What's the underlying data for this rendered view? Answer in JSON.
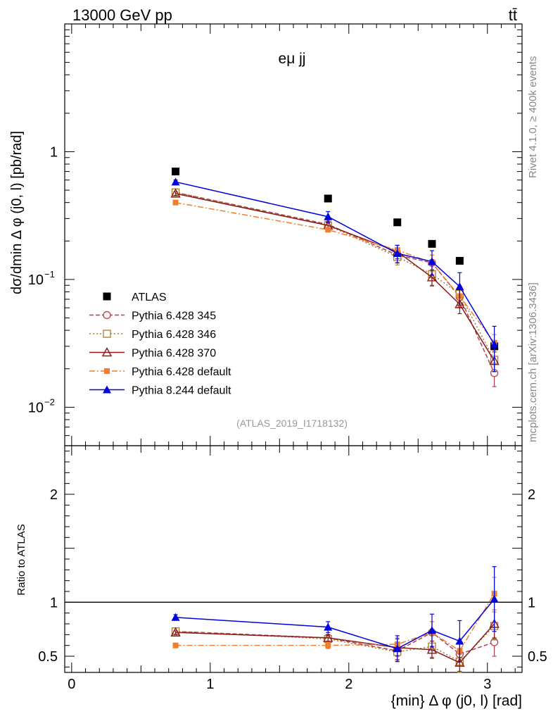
{
  "header": {
    "left": "13000 GeV pp",
    "right": "tt̄",
    "process": "eμ jj",
    "analysis_id": "(ATLAS_2019_I1718132)",
    "rivet": "Rivet 4.1.0, ≥ 400k events",
    "mcplots": "mcplots.cern.ch [arXiv:1306.3436]"
  },
  "colors": {
    "ATLAS": "#000000",
    "Pythia 6.428 345": "#b0404a",
    "Pythia 6.428 346": "#a87b30",
    "Pythia 6.428 370": "#8b1a1a",
    "Pythia 6.428 default": "#f07f30",
    "Pythia 8.244 default": "#0000e0"
  },
  "chart_data": [
    {
      "type": "line",
      "panel": "main",
      "ylabel": "dσ/dmin Δ φ (j0, l) [pb/rad]",
      "yscale": "log",
      "ylim": [
        0.005,
        10
      ],
      "xlim": [
        -0.05,
        3.25
      ],
      "yticks": [
        {
          "value": 1,
          "label": "1"
        },
        {
          "value": 0.1,
          "label": "10",
          "exp": "−1"
        },
        {
          "value": 0.01,
          "label": "10",
          "exp": "−2"
        }
      ],
      "x": [
        0.75,
        1.85,
        2.35,
        2.6,
        2.8,
        3.05
      ],
      "series": [
        {
          "name": "ATLAS",
          "marker": "square",
          "values": [
            0.7,
            0.43,
            0.28,
            0.19,
            0.14,
            0.03
          ]
        },
        {
          "name": "Pythia 6.428 345",
          "marker": "circle-open",
          "dash": "6,3",
          "values": [
            0.48,
            0.27,
            0.155,
            0.135,
            0.073,
            0.0185
          ],
          "err": [
            0.015,
            0.015,
            0.02,
            0.02,
            0.012,
            0.004
          ]
        },
        {
          "name": "Pythia 6.428 346",
          "marker": "square-open",
          "dash": "2,3",
          "values": [
            0.48,
            0.265,
            0.15,
            0.11,
            0.077,
            0.0235
          ],
          "err": [
            0.015,
            0.015,
            0.02,
            0.02,
            0.012,
            0.004
          ]
        },
        {
          "name": "Pythia 6.428 370",
          "marker": "triangle-open",
          "dash": "",
          "values": [
            0.47,
            0.265,
            0.165,
            0.104,
            0.064,
            0.023
          ],
          "err": [
            0.015,
            0.015,
            0.02,
            0.015,
            0.01,
            0.004
          ]
        },
        {
          "name": "Pythia 6.428 default",
          "marker": "square-small",
          "dash": "8,3,2,3",
          "values": [
            0.4,
            0.245,
            0.17,
            0.135,
            0.074,
            0.032
          ],
          "err": [
            0.01,
            0.01,
            0.015,
            0.02,
            0.012,
            0.005
          ]
        },
        {
          "name": "Pythia 8.244 default",
          "marker": "triangle",
          "dash": "",
          "values": [
            0.58,
            0.31,
            0.16,
            0.138,
            0.088,
            0.031
          ],
          "err": [
            0.02,
            0.03,
            0.025,
            0.03,
            0.025,
            0.012
          ]
        }
      ]
    },
    {
      "type": "line",
      "panel": "ratio",
      "ylabel": "Ratio to ATLAS",
      "xlabel": "{min} Δ φ (j0, l) [rad]",
      "ylim": [
        0.35,
        2.45
      ],
      "xlim": [
        -0.05,
        3.25
      ],
      "yticks": [
        {
          "value": 0.5,
          "label": "0.5"
        },
        {
          "value": 1,
          "label": "1"
        },
        {
          "value": 2,
          "label": "2"
        }
      ],
      "xticks": [
        {
          "value": 0,
          "label": "0"
        },
        {
          "value": 1,
          "label": "1"
        },
        {
          "value": 2,
          "label": "2"
        },
        {
          "value": 3,
          "label": "3"
        }
      ],
      "reference": 1,
      "x": [
        0.75,
        1.85,
        2.35,
        2.6,
        2.8,
        3.05
      ],
      "series": [
        {
          "name": "Pythia 6.428 345",
          "marker": "circle-open",
          "dash": "6,3",
          "values": [
            0.73,
            0.67,
            0.55,
            0.72,
            0.52,
            0.63
          ],
          "err": [
            0.015,
            0.03,
            0.08,
            0.1,
            0.1,
            0.13
          ]
        },
        {
          "name": "Pythia 6.428 346",
          "marker": "square-open",
          "dash": "2,3",
          "values": [
            0.73,
            0.66,
            0.54,
            0.59,
            0.45,
            0.78
          ],
          "err": [
            0.015,
            0.03,
            0.08,
            0.1,
            0.1,
            0.13
          ]
        },
        {
          "name": "Pythia 6.428 370",
          "marker": "triangle-open",
          "dash": "",
          "values": [
            0.72,
            0.67,
            0.58,
            0.56,
            0.44,
            0.8
          ],
          "err": [
            0.015,
            0.03,
            0.08,
            0.08,
            0.08,
            0.13
          ]
        },
        {
          "name": "Pythia 6.428 default",
          "marker": "square-small",
          "dash": "8,3,2,3",
          "values": [
            0.6,
            0.6,
            0.61,
            0.72,
            0.55,
            1.08
          ],
          "err": [
            0.015,
            0.03,
            0.06,
            0.1,
            0.1,
            0.15
          ]
        },
        {
          "name": "Pythia 8.244 default",
          "marker": "triangle",
          "dash": "",
          "values": [
            0.86,
            0.77,
            0.57,
            0.74,
            0.64,
            1.03
          ],
          "err": [
            0.025,
            0.05,
            0.12,
            0.15,
            0.19,
            0.3
          ]
        }
      ]
    }
  ]
}
